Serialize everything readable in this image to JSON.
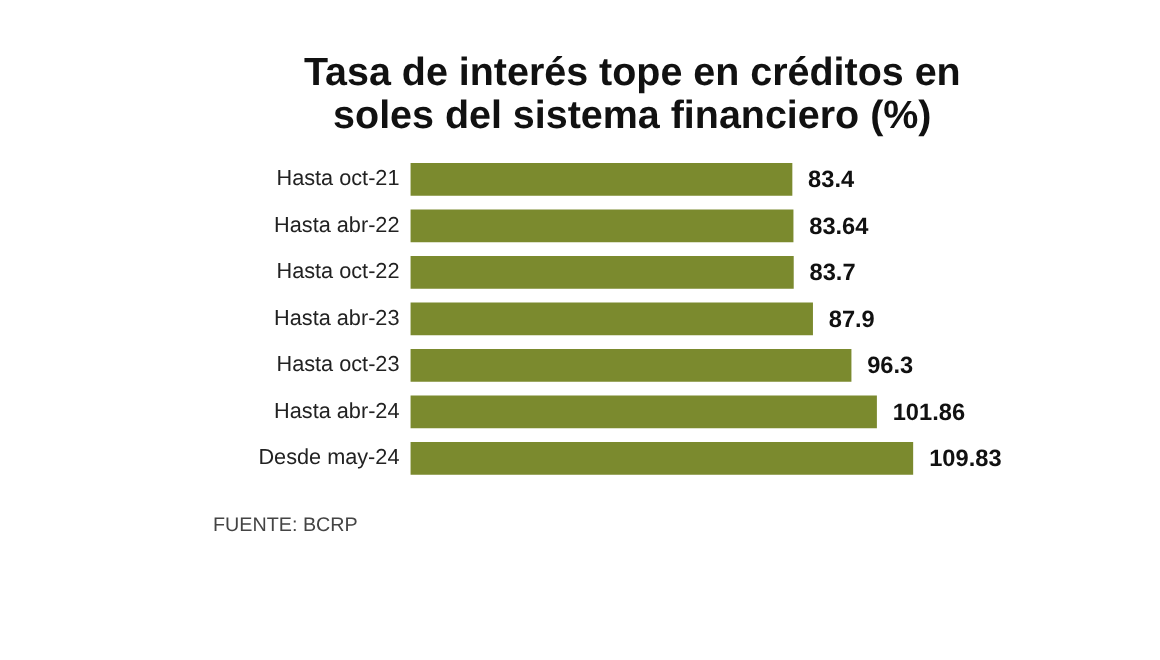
{
  "chart_data": {
    "type": "bar",
    "orientation": "horizontal",
    "title": "Tasa de interés tope en créditos en soles del sistema financiero (%)",
    "categories": [
      "Hasta oct-21",
      "Hasta abr-22",
      "Hasta oct-22",
      "Hasta abr-23",
      "Hasta oct-23",
      "Hasta abr-24",
      "Desde may-24"
    ],
    "values": [
      83.4,
      83.64,
      83.7,
      87.9,
      96.3,
      101.86,
      109.83
    ],
    "color": "#7b8a2e",
    "data_labels": true,
    "annotations": [
      "FUENTE: BCRP"
    ]
  }
}
